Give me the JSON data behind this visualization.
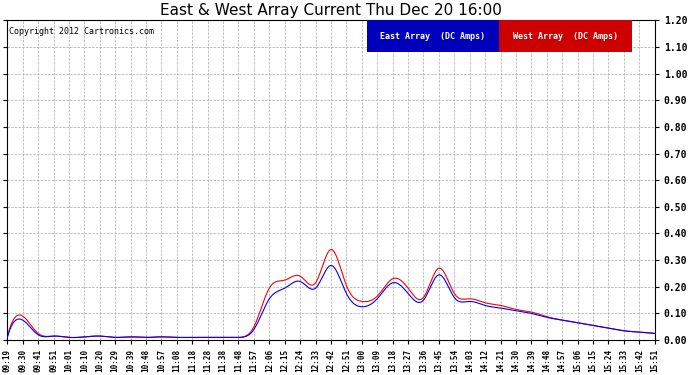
{
  "title": "East & West Array Current Thu Dec 20 16:00",
  "copyright": "Copyright 2012 Cartronics.com",
  "legend_east": "East Array  (DC Amps)",
  "legend_west": "West Array  (DC Amps)",
  "east_color": "#0000FF",
  "west_color": "#FF0000",
  "legend_east_bg": "#0000BB",
  "legend_west_bg": "#CC0000",
  "ylim": [
    0.0,
    1.2
  ],
  "yticks": [
    0.0,
    0.1,
    0.2,
    0.3,
    0.4,
    0.5,
    0.6,
    0.7,
    0.8,
    0.9,
    1.0,
    1.1,
    1.2
  ],
  "background_color": "#FFFFFF",
  "plot_bg": "#FFFFFF",
  "grid_color": "#AAAAAA",
  "title_fontsize": 11,
  "tick_labels": [
    "09:19",
    "09:30",
    "09:41",
    "09:51",
    "10:01",
    "10:10",
    "10:20",
    "10:29",
    "10:39",
    "10:48",
    "10:57",
    "11:08",
    "11:18",
    "11:28",
    "11:38",
    "11:48",
    "11:57",
    "12:06",
    "12:15",
    "12:24",
    "12:33",
    "12:42",
    "12:51",
    "13:00",
    "13:09",
    "13:18",
    "13:27",
    "13:36",
    "13:45",
    "13:54",
    "14:03",
    "14:12",
    "14:21",
    "14:30",
    "14:39",
    "14:48",
    "14:57",
    "15:06",
    "15:15",
    "15:24",
    "15:33",
    "15:42",
    "15:51"
  ],
  "east_data": [
    0.01,
    0.075,
    0.02,
    0.015,
    0.01,
    0.012,
    0.015,
    0.01,
    0.012,
    0.01,
    0.012,
    0.01,
    0.01,
    0.01,
    0.01,
    0.01,
    0.04,
    0.155,
    0.195,
    0.22,
    0.195,
    0.28,
    0.175,
    0.125,
    0.155,
    0.215,
    0.175,
    0.15,
    0.245,
    0.16,
    0.145,
    0.13,
    0.12,
    0.11,
    0.1,
    0.085,
    0.075,
    0.065,
    0.055,
    0.045,
    0.035,
    0.03,
    0.025
  ],
  "west_data": [
    0.01,
    0.09,
    0.025,
    0.015,
    0.01,
    0.012,
    0.015,
    0.01,
    0.012,
    0.01,
    0.012,
    0.01,
    0.01,
    0.01,
    0.01,
    0.01,
    0.05,
    0.195,
    0.225,
    0.24,
    0.215,
    0.34,
    0.205,
    0.145,
    0.165,
    0.23,
    0.195,
    0.16,
    0.27,
    0.175,
    0.155,
    0.14,
    0.13,
    0.115,
    0.105,
    0.088,
    0.075,
    0.065,
    0.055,
    0.045,
    0.035,
    0.03,
    0.025
  ]
}
